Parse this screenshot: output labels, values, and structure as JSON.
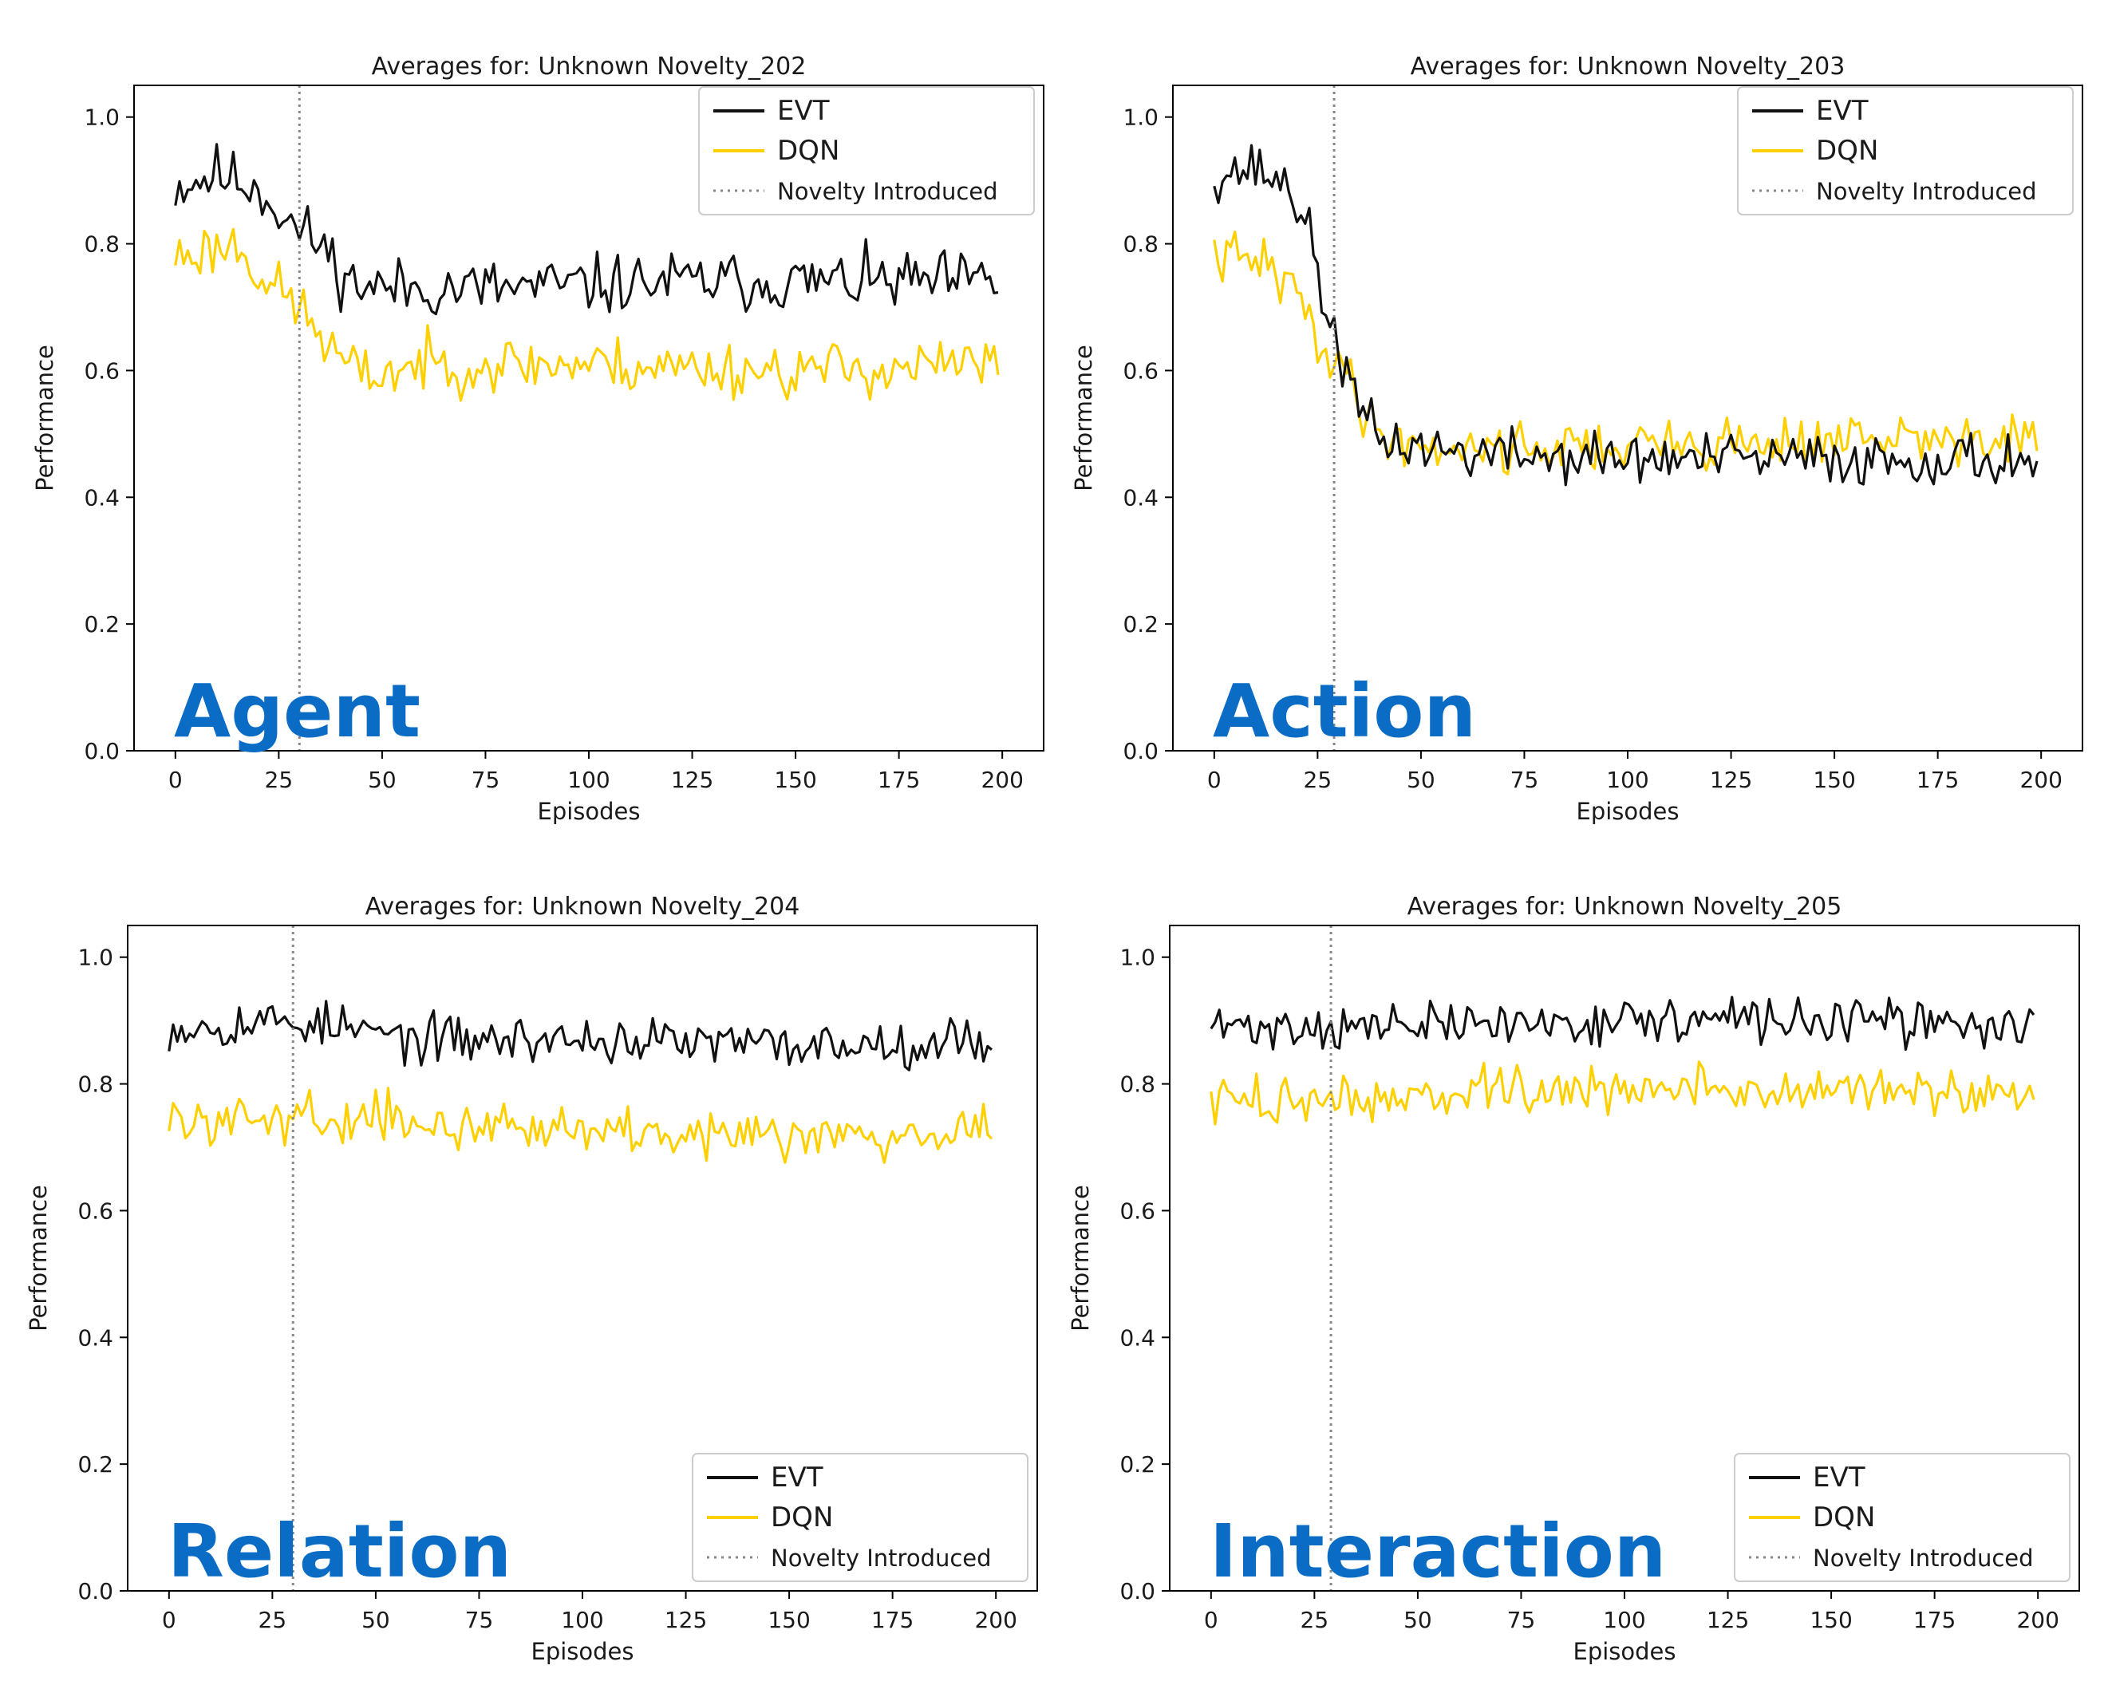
{
  "figure": {
    "colors": {
      "evt": "#111111",
      "dqn": "#ffd000",
      "novelty": "#888888",
      "label": "#0a6cc4",
      "axes": "#000000"
    }
  },
  "chart_data": [
    {
      "type": "line",
      "title": "Averages for: Unknown Novelty_202",
      "xlabel": "Episodes",
      "ylabel": "Performance",
      "xlim": [
        -10,
        210
      ],
      "ylim": [
        0.0,
        1.05
      ],
      "xticks": [
        0,
        25,
        50,
        75,
        100,
        125,
        150,
        175,
        200
      ],
      "yticks": [
        0.0,
        0.2,
        0.4,
        0.6,
        0.8,
        1.0
      ],
      "ytick_labels": [
        "0.0",
        "0.2",
        "0.4",
        "0.6",
        "0.8",
        "1.0"
      ],
      "category_label": "Agent",
      "novelty_x": 30,
      "legend_position": "top-right",
      "legend": {
        "evt": "EVT",
        "dqn": "DQN",
        "novelty": "Novelty Introduced"
      },
      "series": [
        {
          "name": "EVT",
          "color": "#111111",
          "n": 200,
          "noise": 0.032,
          "seed": 11,
          "trend": [
            [
              0,
              0.89
            ],
            [
              10,
              0.91
            ],
            [
              20,
              0.89
            ],
            [
              28,
              0.83
            ],
            [
              35,
              0.8
            ],
            [
              42,
              0.74
            ],
            [
              50,
              0.73
            ],
            [
              80,
              0.73
            ],
            [
              120,
              0.74
            ],
            [
              160,
              0.74
            ],
            [
              200,
              0.74
            ]
          ]
        },
        {
          "name": "DQN",
          "color": "#ffd000",
          "n": 200,
          "noise": 0.03,
          "seed": 23,
          "trend": [
            [
              0,
              0.78
            ],
            [
              15,
              0.8
            ],
            [
              22,
              0.74
            ],
            [
              30,
              0.7
            ],
            [
              38,
              0.63
            ],
            [
              45,
              0.59
            ],
            [
              60,
              0.61
            ],
            [
              100,
              0.61
            ],
            [
              150,
              0.6
            ],
            [
              200,
              0.61
            ]
          ]
        }
      ]
    },
    {
      "type": "line",
      "title": "Averages for: Unknown Novelty_203",
      "xlabel": "Episodes",
      "ylabel": "Performance",
      "xlim": [
        -10,
        210
      ],
      "ylim": [
        0.0,
        1.05
      ],
      "xticks": [
        0,
        25,
        50,
        75,
        100,
        125,
        150,
        175,
        200
      ],
      "yticks": [
        0.0,
        0.2,
        0.4,
        0.6,
        0.8,
        1.0
      ],
      "ytick_labels": [
        "0.0",
        "0.2",
        "0.4",
        "0.6",
        "0.8",
        "1.0"
      ],
      "category_label": "Action",
      "novelty_x": 29,
      "legend_position": "top-right",
      "legend": {
        "evt": "EVT",
        "dqn": "DQN",
        "novelty": "Novelty Introduced"
      },
      "series": [
        {
          "name": "EVT",
          "color": "#111111",
          "n": 200,
          "noise": 0.028,
          "seed": 37,
          "trend": [
            [
              0,
              0.91
            ],
            [
              10,
              0.92
            ],
            [
              18,
              0.89
            ],
            [
              22,
              0.84
            ],
            [
              26,
              0.72
            ],
            [
              30,
              0.64
            ],
            [
              34,
              0.55
            ],
            [
              40,
              0.49
            ],
            [
              60,
              0.47
            ],
            [
              100,
              0.46
            ],
            [
              150,
              0.46
            ],
            [
              200,
              0.46
            ]
          ]
        },
        {
          "name": "DQN",
          "color": "#ffd000",
          "n": 200,
          "noise": 0.028,
          "seed": 41,
          "trend": [
            [
              0,
              0.78
            ],
            [
              12,
              0.77
            ],
            [
              20,
              0.72
            ],
            [
              26,
              0.64
            ],
            [
              32,
              0.6
            ],
            [
              38,
              0.51
            ],
            [
              50,
              0.48
            ],
            [
              100,
              0.48
            ],
            [
              150,
              0.49
            ],
            [
              200,
              0.49
            ]
          ]
        }
      ]
    },
    {
      "type": "line",
      "title": "Averages for: Unknown Novelty_204",
      "xlabel": "Episodes",
      "ylabel": "Performance",
      "xlim": [
        -10,
        210
      ],
      "ylim": [
        0.0,
        1.05
      ],
      "xticks": [
        0,
        25,
        50,
        75,
        100,
        125,
        150,
        175,
        200
      ],
      "yticks": [
        0.0,
        0.2,
        0.4,
        0.6,
        0.8,
        1.0
      ],
      "ytick_labels": [
        "0.0",
        "0.2",
        "0.4",
        "0.6",
        "0.8",
        "1.0"
      ],
      "category_label": "Relation",
      "novelty_x": 30,
      "legend_position": "bottom-right",
      "legend": {
        "evt": "EVT",
        "dqn": "DQN",
        "novelty": "Novelty Introduced"
      },
      "series": [
        {
          "name": "EVT",
          "color": "#111111",
          "n": 200,
          "noise": 0.025,
          "seed": 53,
          "trend": [
            [
              0,
              0.89
            ],
            [
              30,
              0.9
            ],
            [
              60,
              0.87
            ],
            [
              100,
              0.87
            ],
            [
              150,
              0.86
            ],
            [
              200,
              0.87
            ]
          ]
        },
        {
          "name": "DQN",
          "color": "#ffd000",
          "n": 200,
          "noise": 0.025,
          "seed": 59,
          "trend": [
            [
              0,
              0.74
            ],
            [
              30,
              0.75
            ],
            [
              60,
              0.74
            ],
            [
              100,
              0.73
            ],
            [
              150,
              0.72
            ],
            [
              200,
              0.73
            ]
          ]
        }
      ]
    },
    {
      "type": "line",
      "title": "Averages for: Unknown Novelty_205",
      "xlabel": "Episodes",
      "ylabel": "Performance",
      "xlim": [
        -10,
        210
      ],
      "ylim": [
        0.0,
        1.05
      ],
      "xticks": [
        0,
        25,
        50,
        75,
        100,
        125,
        150,
        175,
        200
      ],
      "yticks": [
        0.0,
        0.2,
        0.4,
        0.6,
        0.8,
        1.0
      ],
      "ytick_labels": [
        "0.0",
        "0.2",
        "0.4",
        "0.6",
        "0.8",
        "1.0"
      ],
      "category_label": "Interaction",
      "novelty_x": 29,
      "legend_position": "bottom-right",
      "legend": {
        "evt": "EVT",
        "dqn": "DQN",
        "novelty": "Novelty Introduced"
      },
      "series": [
        {
          "name": "EVT",
          "color": "#111111",
          "n": 200,
          "noise": 0.024,
          "seed": 71,
          "trend": [
            [
              0,
              0.89
            ],
            [
              40,
              0.89
            ],
            [
              100,
              0.9
            ],
            [
              150,
              0.9
            ],
            [
              200,
              0.89
            ]
          ]
        },
        {
          "name": "DQN",
          "color": "#ffd000",
          "n": 200,
          "noise": 0.026,
          "seed": 73,
          "trend": [
            [
              0,
              0.77
            ],
            [
              40,
              0.78
            ],
            [
              100,
              0.79
            ],
            [
              150,
              0.79
            ],
            [
              200,
              0.78
            ]
          ]
        }
      ]
    }
  ]
}
